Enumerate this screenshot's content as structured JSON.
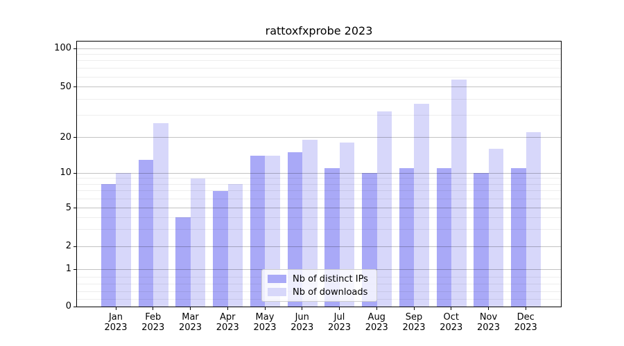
{
  "title": "rattoxfxprobe 2023",
  "legend": {
    "items": [
      {
        "label": "Nb of distinct IPs",
        "color": "#a9a9f7"
      },
      {
        "label": "Nb of downloads",
        "color": "#d7d7fa"
      }
    ]
  },
  "chart_data": {
    "type": "bar",
    "title": "rattoxfxprobe 2023",
    "categories": [
      "Jan",
      "Feb",
      "Mar",
      "Apr",
      "May",
      "Jun",
      "Jul",
      "Aug",
      "Sep",
      "Oct",
      "Nov",
      "Dec"
    ],
    "category_year": "2023",
    "series": [
      {
        "name": "Nb of distinct IPs",
        "color": "#a9a9f7",
        "values": [
          8,
          13,
          4,
          7,
          14,
          15,
          11,
          10,
          11,
          11,
          10,
          11
        ]
      },
      {
        "name": "Nb of downloads",
        "color": "#d7d7fa",
        "values": [
          10,
          26,
          9,
          8,
          14,
          19,
          18,
          32,
          37,
          57,
          16,
          22
        ]
      }
    ],
    "xlabel": "",
    "ylabel": "",
    "yscale": "log-like",
    "ylim": [
      0,
      115
    ],
    "y_ticks": [
      0,
      1,
      2,
      5,
      10,
      20,
      50,
      100
    ],
    "y_minor_ticks": [
      0.2,
      0.4,
      0.6,
      0.8,
      3,
      4,
      6,
      7,
      8,
      9,
      30,
      40,
      60,
      70,
      80,
      90
    ],
    "grid": "both",
    "legend_position": "lower center"
  }
}
